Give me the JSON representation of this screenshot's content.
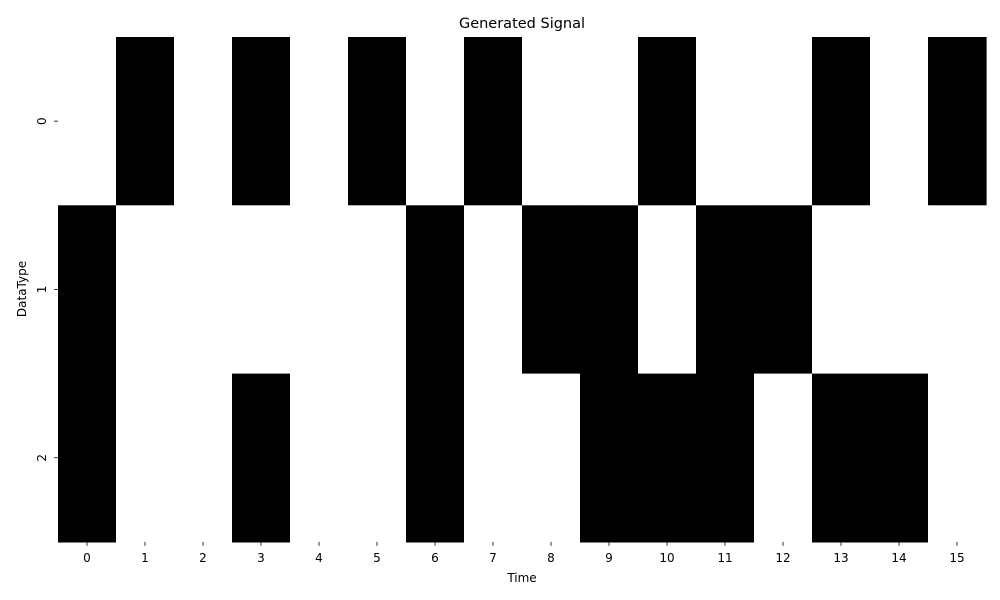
{
  "chart_data": {
    "type": "heatmap",
    "title": "Generated Signal",
    "xlabel": "Time",
    "ylabel": "DataType",
    "x": [
      "0",
      "1",
      "2",
      "3",
      "4",
      "5",
      "6",
      "7",
      "8",
      "9",
      "10",
      "11",
      "12",
      "13",
      "14",
      "15"
    ],
    "y": [
      "0",
      "1",
      "2"
    ],
    "values": [
      [
        0,
        1,
        0,
        1,
        0,
        1,
        0,
        1,
        0,
        0,
        1,
        0,
        0,
        1,
        0,
        1
      ],
      [
        1,
        0,
        0,
        0,
        0,
        0,
        1,
        0,
        1,
        1,
        0,
        1,
        1,
        0,
        0,
        0
      ],
      [
        1,
        0,
        0,
        1,
        0,
        0,
        1,
        0,
        0,
        1,
        1,
        1,
        0,
        1,
        1,
        0
      ]
    ],
    "colors": {
      "on": "#000000",
      "off": "#ffffff"
    },
    "grid": false,
    "legend": "none"
  }
}
